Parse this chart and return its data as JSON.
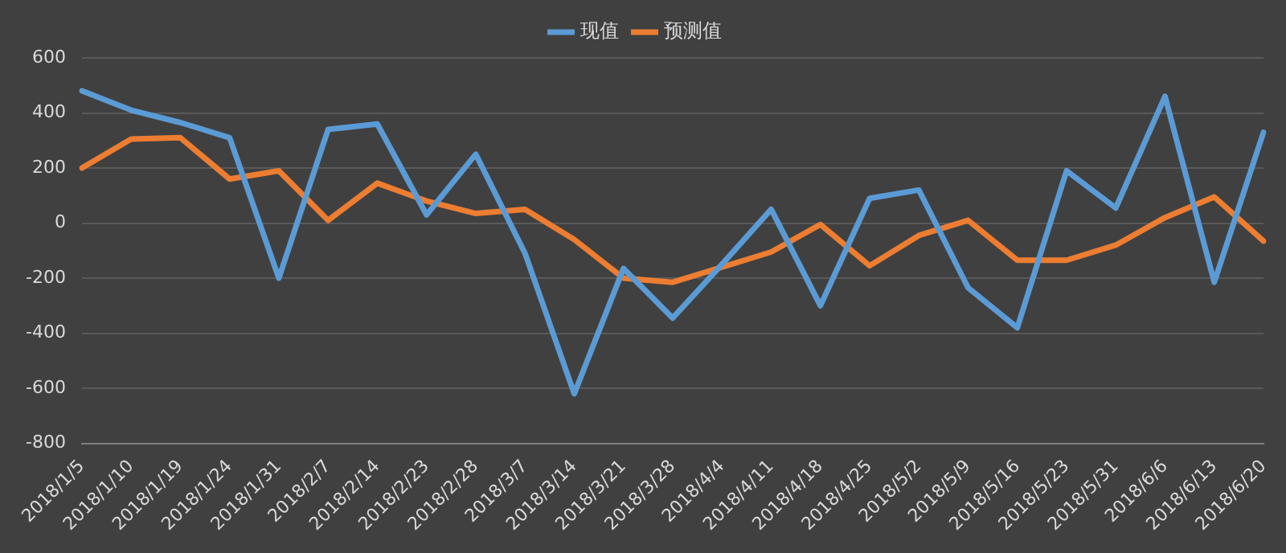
{
  "chart_data": {
    "type": "line",
    "categories": [
      "2018/1/5",
      "2018/1/10",
      "2018/1/19",
      "2018/1/24",
      "2018/1/31",
      "2018/2/7",
      "2018/2/14",
      "2018/2/23",
      "2018/2/28",
      "2018/3/7",
      "2018/3/14",
      "2018/3/21",
      "2018/3/28",
      "2018/4/4",
      "2018/4/11",
      "2018/4/18",
      "2018/4/25",
      "2018/5/2",
      "2018/5/9",
      "2018/5/16",
      "2018/5/23",
      "2018/5/31",
      "2018/6/6",
      "2018/6/13",
      "2018/6/20"
    ],
    "series": [
      {
        "name": "现值",
        "color": "#5b9bd5",
        "values": [
          480,
          410,
          365,
          310,
          -200,
          340,
          360,
          30,
          250,
          -110,
          -620,
          -165,
          -345,
          -150,
          50,
          -300,
          90,
          120,
          -235,
          -380,
          190,
          55,
          460,
          -215,
          330
        ]
      },
      {
        "name": "预测值",
        "color": "#ed7d31",
        "values": [
          200,
          305,
          310,
          160,
          190,
          10,
          145,
          80,
          35,
          50,
          -60,
          -200,
          -215,
          -160,
          -105,
          -5,
          -155,
          -45,
          10,
          -135,
          -135,
          -80,
          20,
          95,
          -65
        ]
      }
    ],
    "ylim": [
      -800,
      600
    ],
    "yticks": [
      -800,
      -600,
      -400,
      -200,
      0,
      200,
      400,
      600
    ],
    "grid": "y",
    "legend": "top",
    "marker": "none",
    "line_style": "solid"
  }
}
